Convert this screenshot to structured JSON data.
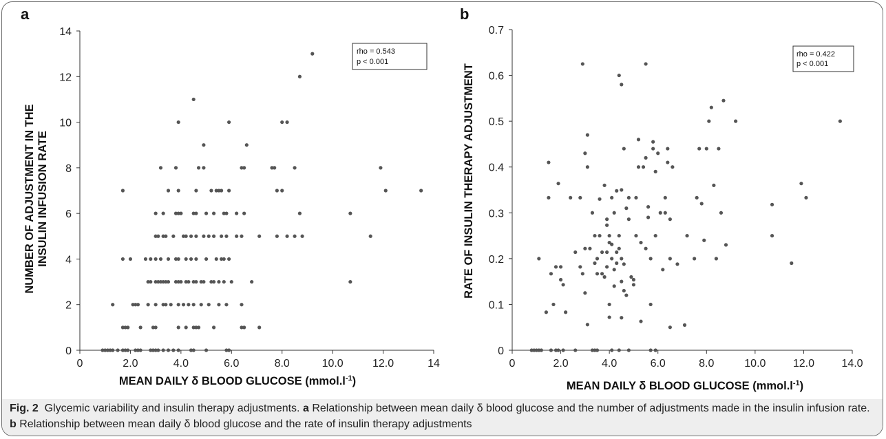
{
  "figure": {
    "caption_label": "Fig. 2",
    "caption_title": "Glycemic variability and insulin therapy adjustments.",
    "caption_a_letter": "a",
    "caption_a_text": "Relationship between mean daily δ blood glucose and the number of adjustments made in the insulin infusion rate.",
    "caption_b_letter": "b",
    "caption_b_text": "Relationship between mean daily δ blood glucose and the rate of insulin therapy adjustments"
  },
  "chart_data": [
    {
      "type": "scatter",
      "panel": "a",
      "xlabel": "MEAN DAILY δ BLOOD GLUCOSE (mmol.l-1)",
      "xlabel_main": "MEAN DAILY δ BLOOD GLUCOSE (mmol.l",
      "xlabel_sup": "-1",
      "xlabel_end": ")",
      "ylabel_line1": "NUMBER OF ADJUSTMENT IN THE",
      "ylabel_line2": "INSULIN INFUSION RATE",
      "xlim": [
        0,
        14
      ],
      "ylim": [
        0,
        14
      ],
      "x_ticks": [
        "0",
        "2.0",
        "4.0",
        "6.0",
        "8.0",
        "10.0",
        "12.0",
        "14"
      ],
      "x_tick_values": [
        0,
        2,
        4,
        6,
        8,
        10,
        12,
        14
      ],
      "y_ticks": [
        "0",
        "2",
        "4",
        "6",
        "8",
        "10",
        "12",
        "14"
      ],
      "y_tick_values": [
        0,
        2,
        4,
        6,
        8,
        10,
        12,
        14
      ],
      "stat_line1": "rho = 0.543",
      "stat_line2": "p < 0.001",
      "color": "#555555",
      "points": [
        [
          0.9,
          0
        ],
        [
          1.0,
          0
        ],
        [
          1.1,
          0
        ],
        [
          1.2,
          0
        ],
        [
          1.3,
          0
        ],
        [
          1.5,
          0
        ],
        [
          1.7,
          0
        ],
        [
          1.8,
          0
        ],
        [
          1.9,
          0
        ],
        [
          2.2,
          0
        ],
        [
          2.3,
          0
        ],
        [
          2.4,
          0
        ],
        [
          2.8,
          0
        ],
        [
          2.9,
          0
        ],
        [
          3.0,
          0
        ],
        [
          3.1,
          0
        ],
        [
          3.3,
          0
        ],
        [
          3.5,
          0
        ],
        [
          3.7,
          0
        ],
        [
          3.9,
          0
        ],
        [
          4.4,
          0
        ],
        [
          4.5,
          0
        ],
        [
          5.0,
          0
        ],
        [
          5.8,
          0
        ],
        [
          5.9,
          0
        ],
        [
          1.3,
          2
        ],
        [
          2.1,
          2
        ],
        [
          2.2,
          2
        ],
        [
          2.3,
          2
        ],
        [
          2.7,
          2
        ],
        [
          3.0,
          2
        ],
        [
          3.3,
          2
        ],
        [
          3.4,
          2
        ],
        [
          3.6,
          2
        ],
        [
          3.9,
          2
        ],
        [
          4.1,
          2
        ],
        [
          4.3,
          2
        ],
        [
          4.5,
          2
        ],
        [
          4.8,
          2
        ],
        [
          5.1,
          2
        ],
        [
          5.5,
          2
        ],
        [
          5.8,
          2
        ],
        [
          6.4,
          2
        ],
        [
          1.7,
          1
        ],
        [
          1.8,
          1
        ],
        [
          1.9,
          1
        ],
        [
          2.4,
          1
        ],
        [
          2.9,
          1
        ],
        [
          3.0,
          1
        ],
        [
          3.9,
          1
        ],
        [
          4.2,
          1
        ],
        [
          4.5,
          1
        ],
        [
          4.6,
          1
        ],
        [
          4.7,
          1
        ],
        [
          5.3,
          1
        ],
        [
          6.4,
          1
        ],
        [
          6.5,
          1
        ],
        [
          7.1,
          1
        ],
        [
          1.7,
          4
        ],
        [
          2.0,
          4
        ],
        [
          2.6,
          4
        ],
        [
          2.8,
          4
        ],
        [
          3.0,
          4
        ],
        [
          3.2,
          4
        ],
        [
          3.5,
          4
        ],
        [
          3.8,
          4
        ],
        [
          3.9,
          4
        ],
        [
          4.2,
          4
        ],
        [
          4.4,
          4
        ],
        [
          4.6,
          4
        ],
        [
          5.0,
          4
        ],
        [
          5.4,
          4
        ],
        [
          5.6,
          4
        ],
        [
          5.7,
          4
        ],
        [
          5.9,
          4
        ],
        [
          2.7,
          3
        ],
        [
          2.8,
          3
        ],
        [
          3.0,
          3
        ],
        [
          3.1,
          3
        ],
        [
          3.2,
          3
        ],
        [
          3.3,
          3
        ],
        [
          3.4,
          3
        ],
        [
          3.5,
          3
        ],
        [
          3.8,
          3
        ],
        [
          3.9,
          3
        ],
        [
          4.0,
          3
        ],
        [
          4.2,
          3
        ],
        [
          4.3,
          3
        ],
        [
          4.5,
          3
        ],
        [
          4.6,
          3
        ],
        [
          4.8,
          3
        ],
        [
          4.9,
          3
        ],
        [
          5.2,
          3
        ],
        [
          5.3,
          3
        ],
        [
          5.5,
          3
        ],
        [
          5.7,
          3
        ],
        [
          6.0,
          3
        ],
        [
          6.8,
          3
        ],
        [
          10.7,
          3
        ],
        [
          3.0,
          5
        ],
        [
          3.1,
          5
        ],
        [
          3.3,
          5
        ],
        [
          3.4,
          5
        ],
        [
          3.7,
          5
        ],
        [
          4.1,
          5
        ],
        [
          4.2,
          5
        ],
        [
          4.4,
          5
        ],
        [
          4.6,
          5
        ],
        [
          4.9,
          5
        ],
        [
          5.1,
          5
        ],
        [
          5.3,
          5
        ],
        [
          5.6,
          5
        ],
        [
          5.8,
          5
        ],
        [
          6.2,
          5
        ],
        [
          6.4,
          5
        ],
        [
          7.1,
          5
        ],
        [
          7.8,
          5
        ],
        [
          8.2,
          5
        ],
        [
          8.5,
          5
        ],
        [
          8.8,
          5
        ],
        [
          11.5,
          5
        ],
        [
          3.0,
          6
        ],
        [
          3.3,
          6
        ],
        [
          3.8,
          6
        ],
        [
          3.9,
          6
        ],
        [
          4.0,
          6
        ],
        [
          4.5,
          6
        ],
        [
          4.6,
          6
        ],
        [
          5.0,
          6
        ],
        [
          5.3,
          6
        ],
        [
          5.7,
          6
        ],
        [
          5.8,
          6
        ],
        [
          6.2,
          6
        ],
        [
          6.5,
          6
        ],
        [
          8.7,
          6
        ],
        [
          10.7,
          6
        ],
        [
          1.7,
          7
        ],
        [
          3.5,
          7
        ],
        [
          3.9,
          7
        ],
        [
          4.6,
          7
        ],
        [
          5.2,
          7
        ],
        [
          5.4,
          7
        ],
        [
          5.5,
          7
        ],
        [
          5.6,
          7
        ],
        [
          5.9,
          7
        ],
        [
          7.8,
          7
        ],
        [
          8.0,
          7
        ],
        [
          12.1,
          7
        ],
        [
          13.5,
          7
        ],
        [
          3.2,
          8
        ],
        [
          3.8,
          8
        ],
        [
          4.7,
          8
        ],
        [
          4.9,
          8
        ],
        [
          6.4,
          8
        ],
        [
          6.5,
          8
        ],
        [
          7.6,
          8
        ],
        [
          7.7,
          8
        ],
        [
          8.5,
          8
        ],
        [
          11.9,
          8
        ],
        [
          4.9,
          9
        ],
        [
          6.6,
          9
        ],
        [
          3.9,
          10
        ],
        [
          5.9,
          10
        ],
        [
          8.0,
          10
        ],
        [
          8.2,
          10
        ],
        [
          4.5,
          11
        ],
        [
          8.7,
          12
        ],
        [
          9.2,
          13
        ]
      ]
    },
    {
      "type": "scatter",
      "panel": "b",
      "xlabel": "MEAN DAILY δ BLOOD GLUCOSE (mmol.l-1)",
      "xlabel_main": "MEAN DAILY δ BLOOD GLUCOSE (mmol.l",
      "xlabel_sup": "-1",
      "xlabel_end": ")",
      "ylabel": "RATE OF INSULIN THERAPY ADJUSTMENT",
      "xlim": [
        0,
        14
      ],
      "ylim": [
        0,
        0.7
      ],
      "x_ticks": [
        "0",
        "2.0",
        "4.0",
        "6.0",
        "8.0",
        "10.0",
        "12.0",
        "14.0"
      ],
      "x_tick_values": [
        0,
        2,
        4,
        6,
        8,
        10,
        12,
        14
      ],
      "y_ticks": [
        "0",
        "0.1",
        "0.2",
        "0.3",
        "0.4",
        "0.5",
        "0.6",
        "0.7"
      ],
      "y_tick_values": [
        0,
        0.1,
        0.2,
        0.3,
        0.4,
        0.5,
        0.6,
        0.7
      ],
      "stat_line1": "rho = 0.422",
      "stat_line2": "p < 0.001",
      "color": "#555555",
      "points": [
        [
          0.8,
          0
        ],
        [
          0.9,
          0
        ],
        [
          1.0,
          0
        ],
        [
          1.1,
          0
        ],
        [
          1.2,
          0
        ],
        [
          1.6,
          0
        ],
        [
          1.8,
          0
        ],
        [
          1.9,
          0
        ],
        [
          2.1,
          0
        ],
        [
          2.6,
          0
        ],
        [
          3.3,
          0
        ],
        [
          3.4,
          0
        ],
        [
          3.5,
          0
        ],
        [
          4.1,
          0
        ],
        [
          4.4,
          0
        ],
        [
          4.8,
          0
        ],
        [
          5.7,
          0
        ],
        [
          5.9,
          0
        ],
        [
          2.9,
          0.625
        ],
        [
          4.4,
          0.6
        ],
        [
          4.5,
          0.58
        ],
        [
          5.5,
          0.625
        ],
        [
          1.1,
          0.2
        ],
        [
          1.4,
          0.083
        ],
        [
          1.5,
          0.333
        ],
        [
          1.5,
          0.41
        ],
        [
          1.6,
          0.167
        ],
        [
          1.7,
          0.1
        ],
        [
          1.8,
          0.182
        ],
        [
          1.9,
          0.364
        ],
        [
          2.0,
          0.154
        ],
        [
          2.0,
          0.182
        ],
        [
          2.1,
          0.143
        ],
        [
          2.2,
          0.083
        ],
        [
          2.4,
          0.333
        ],
        [
          2.6,
          0.214
        ],
        [
          2.8,
          0.333
        ],
        [
          2.8,
          0.182
        ],
        [
          2.9,
          0.167
        ],
        [
          3.0,
          0.125
        ],
        [
          3.0,
          0.222
        ],
        [
          3.0,
          0.43
        ],
        [
          3.1,
          0.056
        ],
        [
          3.1,
          0.47
        ],
        [
          3.1,
          0.4
        ],
        [
          3.2,
          0.222
        ],
        [
          3.3,
          0.3
        ],
        [
          3.4,
          0.25
        ],
        [
          3.5,
          0.2
        ],
        [
          3.5,
          0.167
        ],
        [
          3.6,
          0.25
        ],
        [
          3.6,
          0.33
        ],
        [
          3.7,
          0.214
        ],
        [
          3.7,
          0.167
        ],
        [
          3.8,
          0.36
        ],
        [
          3.9,
          0.182
        ],
        [
          3.9,
          0.273
        ],
        [
          3.9,
          0.286
        ],
        [
          4.0,
          0.235
        ],
        [
          4.0,
          0.25
        ],
        [
          4.1,
          0.333
        ],
        [
          4.1,
          0.231
        ],
        [
          4.1,
          0.2
        ],
        [
          4.2,
          0.3
        ],
        [
          4.2,
          0.176
        ],
        [
          4.3,
          0.348
        ],
        [
          4.3,
          0.214
        ],
        [
          4.4,
          0.25
        ],
        [
          4.4,
          0.222
        ],
        [
          4.5,
          0.071
        ],
        [
          4.5,
          0.35
        ],
        [
          4.5,
          0.2
        ],
        [
          4.5,
          0.15
        ],
        [
          4.6,
          0.188
        ],
        [
          4.7,
          0.12
        ],
        [
          4.8,
          0.286
        ],
        [
          4.8,
          0.333
        ],
        [
          4.9,
          0.16
        ],
        [
          5.0,
          0.154
        ],
        [
          5.0,
          0.143
        ],
        [
          5.1,
          0.333
        ],
        [
          5.1,
          0.25
        ],
        [
          5.2,
          0.4
        ],
        [
          5.2,
          0.46
        ],
        [
          5.3,
          0.063
        ],
        [
          5.4,
          0.4
        ],
        [
          5.5,
          0.222
        ],
        [
          5.6,
          0.313
        ],
        [
          5.6,
          0.29
        ],
        [
          5.7,
          0.1
        ],
        [
          5.7,
          0.2
        ],
        [
          5.8,
          0.455
        ],
        [
          5.8,
          0.44
        ],
        [
          5.9,
          0.39
        ],
        [
          5.9,
          0.25
        ],
        [
          6.0,
          0.43
        ],
        [
          6.1,
          0.3
        ],
        [
          6.2,
          0.176
        ],
        [
          6.3,
          0.333
        ],
        [
          6.4,
          0.44
        ],
        [
          6.5,
          0.05
        ],
        [
          6.5,
          0.2
        ],
        [
          6.5,
          0.286
        ],
        [
          6.6,
          0.4
        ],
        [
          6.8,
          0.188
        ],
        [
          7.1,
          0.055
        ],
        [
          7.2,
          0.25
        ],
        [
          7.5,
          0.2
        ],
        [
          7.6,
          0.333
        ],
        [
          7.7,
          0.44
        ],
        [
          7.8,
          0.32
        ],
        [
          7.9,
          0.24
        ],
        [
          8.0,
          0.44
        ],
        [
          8.1,
          0.5
        ],
        [
          8.2,
          0.53
        ],
        [
          8.3,
          0.36
        ],
        [
          8.4,
          0.2
        ],
        [
          8.5,
          0.44
        ],
        [
          8.6,
          0.3
        ],
        [
          8.7,
          0.545
        ],
        [
          8.8,
          0.23
        ],
        [
          9.2,
          0.5
        ],
        [
          10.7,
          0.25
        ],
        [
          10.7,
          0.318
        ],
        [
          11.5,
          0.19
        ],
        [
          11.9,
          0.364
        ],
        [
          12.1,
          0.333
        ],
        [
          13.5,
          0.5
        ],
        [
          3.4,
          0.19
        ],
        [
          3.8,
          0.16
        ],
        [
          3.9,
          0.214
        ],
        [
          4.0,
          0.1
        ],
        [
          4.0,
          0.072
        ],
        [
          4.2,
          0.14
        ],
        [
          4.3,
          0.19
        ],
        [
          4.6,
          0.13
        ],
        [
          4.6,
          0.44
        ],
        [
          4.7,
          0.31
        ],
        [
          5.3,
          0.235
        ],
        [
          5.5,
          0.42
        ],
        [
          6.3,
          0.3
        ],
        [
          6.4,
          0.41
        ]
      ]
    }
  ]
}
